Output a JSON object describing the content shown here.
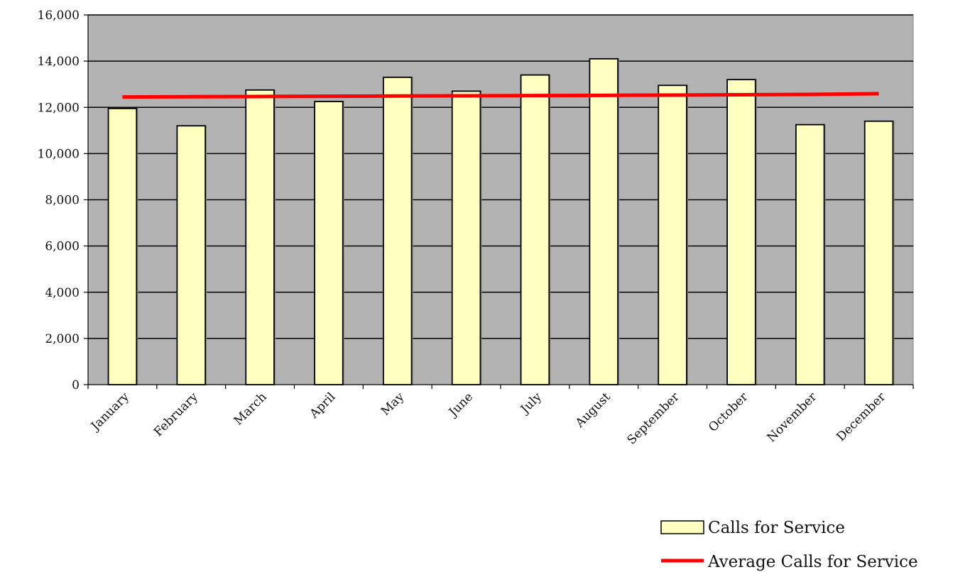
{
  "chart_data": {
    "type": "bar",
    "title": "",
    "xlabel": "",
    "ylabel": "",
    "categories": [
      "January",
      "February",
      "March",
      "April",
      "May",
      "June",
      "July",
      "August",
      "September",
      "October",
      "November",
      "December"
    ],
    "series": [
      {
        "name": "Calls for Service",
        "type": "bar",
        "color": "#FFFFC0",
        "values": [
          11950,
          11200,
          12750,
          12250,
          13300,
          12700,
          13400,
          14100,
          12950,
          13200,
          11250,
          11400
        ]
      },
      {
        "name": "Average Calls for Service",
        "type": "line",
        "color": "#FF0000",
        "values": [
          12450,
          12460,
          12470,
          12480,
          12490,
          12500,
          12510,
          12520,
          12530,
          12545,
          12560,
          12590
        ]
      }
    ],
    "ylim": [
      0,
      16000
    ],
    "yticks": [
      0,
      2000,
      4000,
      6000,
      8000,
      10000,
      12000,
      14000,
      16000
    ],
    "ytick_labels": [
      "0",
      "2,000",
      "4,000",
      "6,000",
      "8,000",
      "10,000",
      "12,000",
      "14,000",
      "16,000"
    ],
    "grid": true,
    "plot_background": "#B3B3B3",
    "legend": {
      "placement": "bottom-right",
      "entries": [
        "Calls for Service",
        "Average Calls for Service"
      ]
    }
  }
}
